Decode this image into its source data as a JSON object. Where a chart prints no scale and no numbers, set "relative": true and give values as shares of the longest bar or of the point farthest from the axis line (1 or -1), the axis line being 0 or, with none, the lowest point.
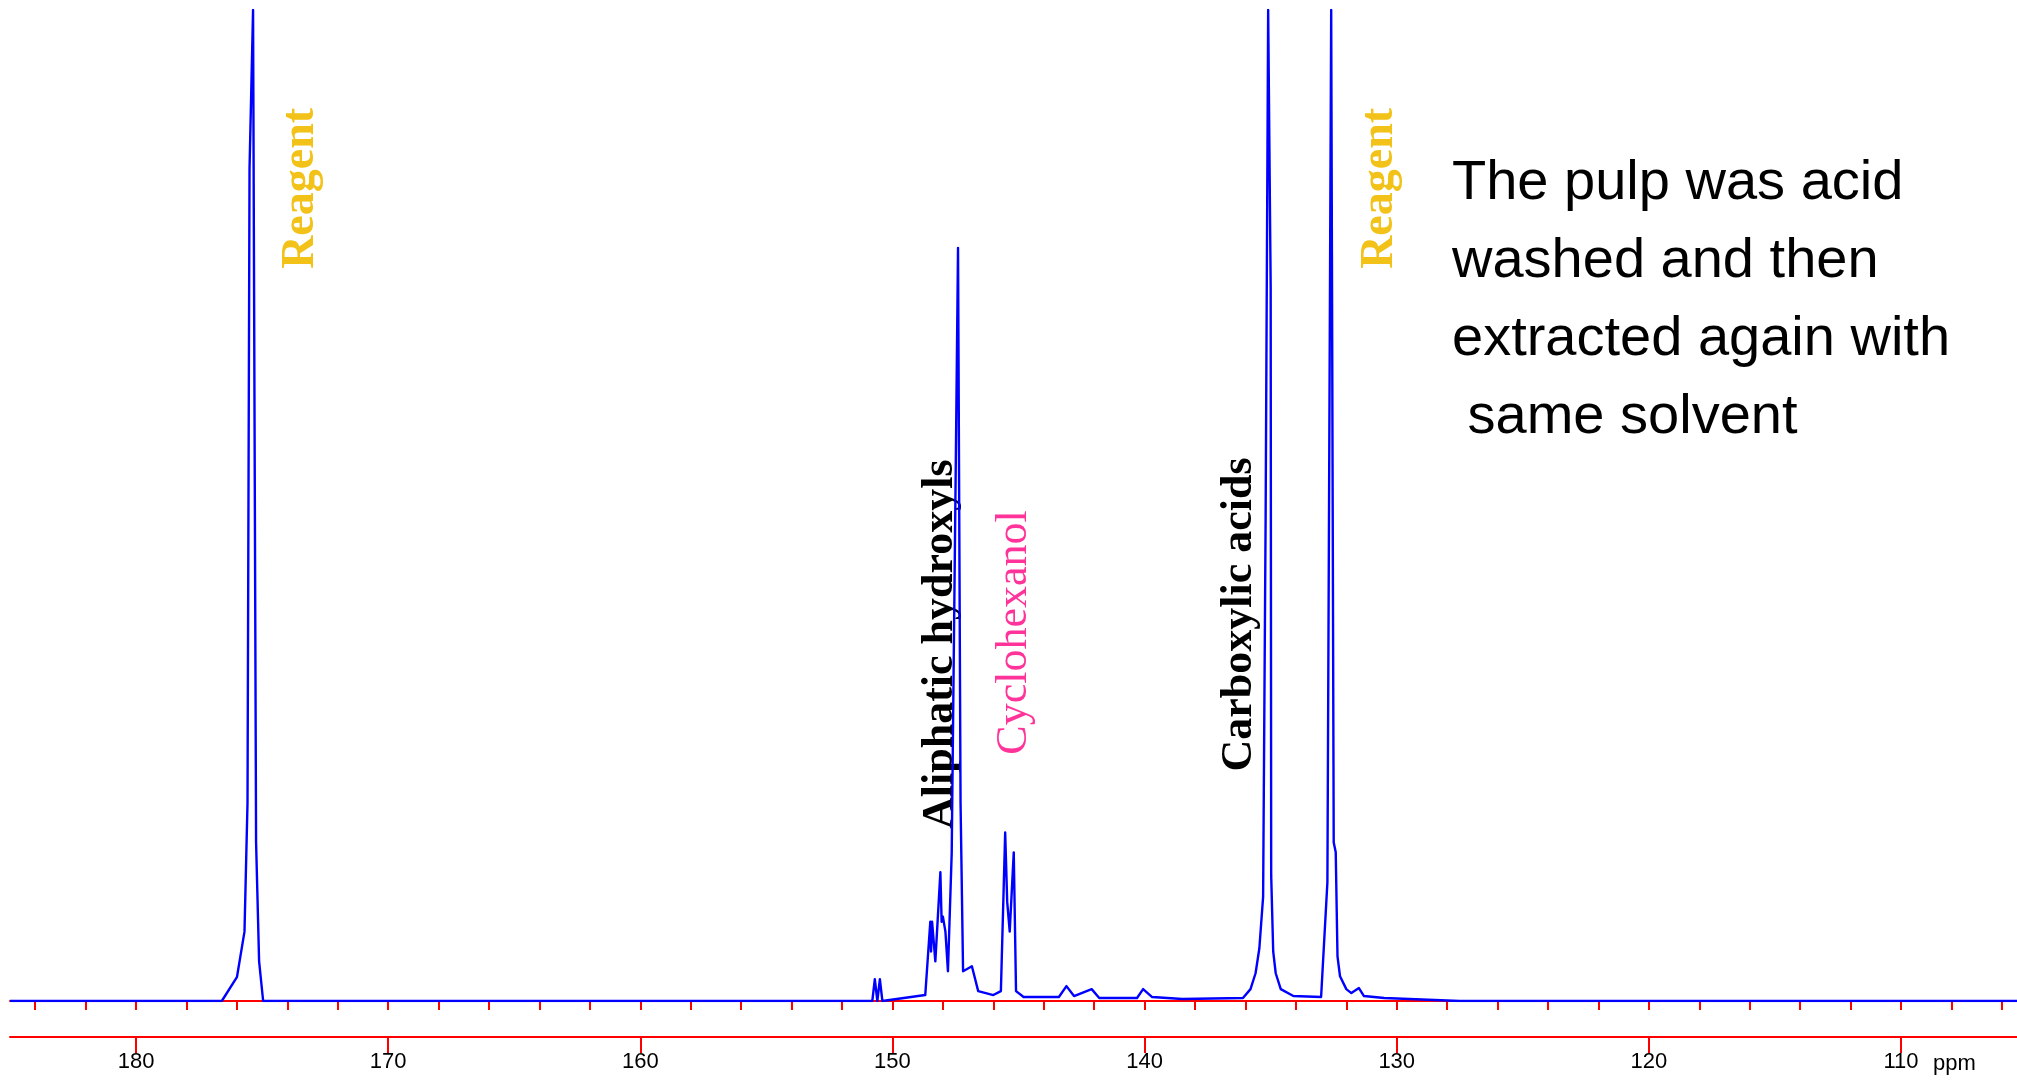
{
  "chart_data": {
    "type": "line",
    "relative": true,
    "xlabel": "ppm",
    "xlim": [
      185,
      105.4
    ],
    "xticks": [
      {
        "value": 184,
        "label": null
      },
      {
        "value": 182,
        "label": null
      },
      180,
      {
        "value": 178,
        "label": null
      },
      {
        "value": 176,
        "label": null
      },
      {
        "value": 174,
        "label": null
      },
      {
        "value": 172,
        "label": null
      },
      170,
      {
        "value": 168,
        "label": null
      },
      {
        "value": 166,
        "label": null
      },
      {
        "value": 164,
        "label": null
      },
      {
        "value": 162,
        "label": null
      },
      160,
      {
        "value": 158,
        "label": null
      },
      {
        "value": 156,
        "label": null
      },
      {
        "value": 154,
        "label": null
      },
      {
        "value": 152,
        "label": null
      },
      150,
      {
        "value": 148,
        "label": null
      },
      {
        "value": 146,
        "label": null
      },
      {
        "value": 144,
        "label": null
      },
      {
        "value": 142,
        "label": null
      },
      140,
      {
        "value": 138,
        "label": null
      },
      {
        "value": 136,
        "label": null
      },
      {
        "value": 134,
        "label": null
      },
      {
        "value": 132,
        "label": null
      },
      130,
      {
        "value": 128,
        "label": null
      },
      {
        "value": 126,
        "label": null
      },
      {
        "value": 124,
        "label": null
      },
      {
        "value": 122,
        "label": null
      },
      120,
      {
        "value": 118,
        "label": null
      },
      {
        "value": 116,
        "label": null
      },
      {
        "value": 114,
        "label": null
      },
      {
        "value": 112,
        "label": null
      },
      110,
      {
        "value": 108,
        "label": null
      },
      {
        "value": 106,
        "label": null
      }
    ],
    "tick_labels": "x",
    "marker": "none",
    "line_style": "solid",
    "series": [
      {
        "color": "#0000ff",
        "x": [
          185,
          176.6,
          176.0,
          175.7,
          175.58,
          175.5,
          175.36,
          175.24,
          175.12,
          174.96,
          150.8,
          150.7,
          150.6,
          150.5,
          150.4,
          148.7,
          148.5,
          148.47,
          148.43,
          148.3,
          148.1,
          148.05,
          148.0,
          147.9,
          147.8,
          147.65,
          147.4,
          147.3,
          147.2,
          146.85,
          146.6,
          146.0,
          145.7,
          145.53,
          145.45,
          145.35,
          145.19,
          145.1,
          144.8,
          143.4,
          143.1,
          142.8,
          142.1,
          141.8,
          140.3,
          140.06,
          139.7,
          138.5,
          136.1,
          135.8,
          135.6,
          135.45,
          135.3,
          135.2,
          135.1,
          135.0,
          134.98,
          134.9,
          134.8,
          134.6,
          134.1,
          133.0,
          132.75,
          132.6,
          132.5,
          132.42,
          132.35,
          132.25,
          132.0,
          131.8,
          131.5,
          131.3,
          130.5,
          127.5,
          105.4
        ],
        "values": [
          0,
          0,
          0.024,
          0.07,
          0.2,
          0.84,
          1,
          0.16,
          0.04,
          0,
          0,
          0.022,
          0,
          0.022,
          0,
          0.006,
          0.08,
          0.05,
          0.08,
          0.04,
          0.13,
          0.08,
          0.085,
          0.07,
          0.03,
          0.15,
          0.76,
          0.2,
          0.03,
          0.035,
          0.01,
          0.006,
          0.01,
          0.17,
          0.1,
          0.07,
          0.15,
          0.01,
          0.004,
          0.004,
          0.015,
          0.005,
          0.012,
          0.003,
          0.003,
          0.012,
          0.004,
          0.002,
          0.003,
          0.012,
          0.028,
          0.053,
          0.105,
          0.49,
          1,
          0.72,
          0.127,
          0.05,
          0.028,
          0.012,
          0.005,
          0.004,
          0.12,
          1,
          0.16,
          0.15,
          0.045,
          0.025,
          0.012,
          0.008,
          0.013,
          0.005,
          0.003,
          0,
          0
        ]
      }
    ],
    "annotations": [
      {
        "text": "Reagent",
        "x": 175.36,
        "y": 0.82
      },
      {
        "text": "Aliphatic hydroxyls",
        "x": 147.4,
        "y": 0.36
      },
      {
        "text": "Cyclohexanol",
        "x": 145.53,
        "y": 0.17
      },
      {
        "text": "Carboxylic acids",
        "x": 135.1,
        "y": 0.39
      },
      {
        "text": "Reagent",
        "x": 132.6,
        "y": 0.82
      },
      "The pulp was acid washed and then extracted again with same solvent"
    ]
  }
}
